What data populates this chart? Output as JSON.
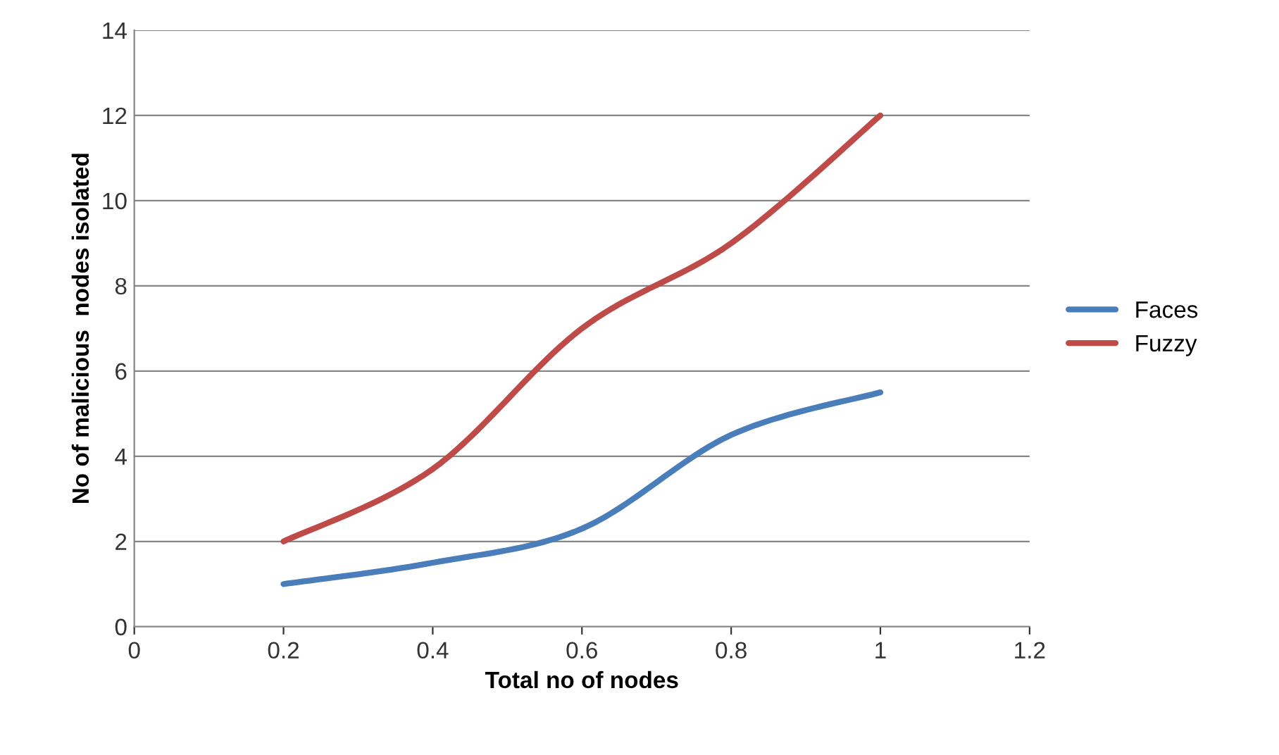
{
  "chart_data": {
    "type": "line",
    "xlabel": "Total no of nodes",
    "ylabel": "No of malicious  nodes isolated",
    "x": [
      0.2,
      0.4,
      0.6,
      0.8,
      1.0
    ],
    "series": [
      {
        "name": "Faces",
        "color": "#4a7ebb",
        "values": [
          1,
          1.5,
          2.3,
          4.5,
          5.5
        ]
      },
      {
        "name": "Fuzzy",
        "color": "#be4b48",
        "values": [
          2,
          3.7,
          7,
          9,
          12
        ]
      }
    ],
    "xlim": [
      0,
      1.2
    ],
    "xticks": [
      0,
      0.2,
      0.4,
      0.6,
      0.8,
      1,
      1.2
    ],
    "ylim": [
      0,
      14
    ],
    "yticks": [
      0,
      2,
      4,
      6,
      8,
      10,
      12,
      14
    ],
    "grid": "y",
    "legend": "right",
    "marker": "none",
    "line_style": "solid"
  }
}
